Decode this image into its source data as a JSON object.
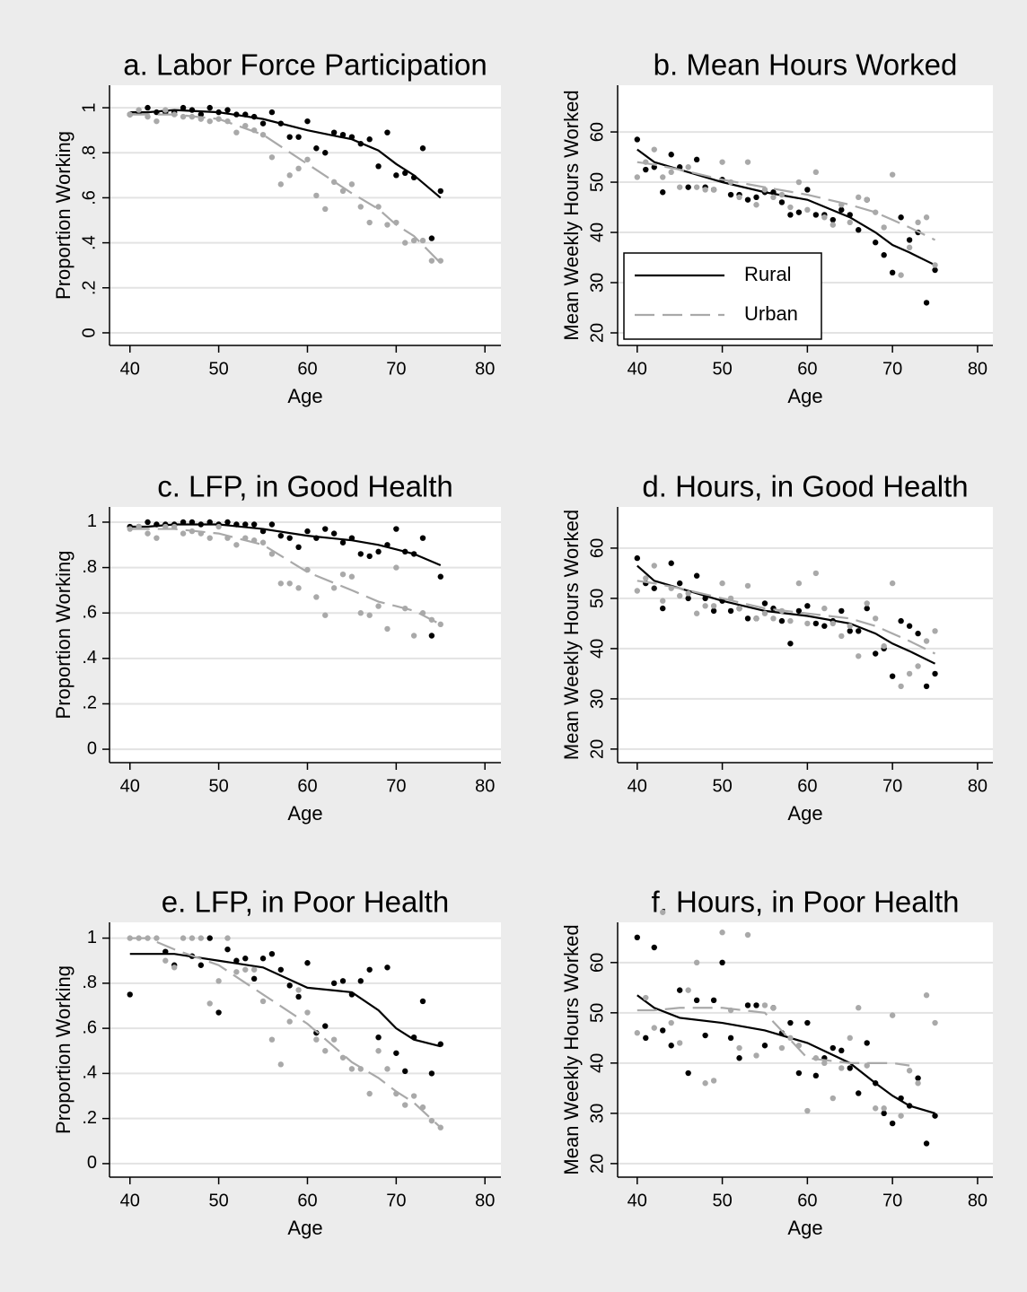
{
  "chart_data": [
    {
      "type": "scatter",
      "title": "a. Labor Force Participation",
      "x_label": "Age",
      "y_label": "Proportion Working",
      "xlim": [
        37.7,
        81.8
      ],
      "xticks": [
        40,
        50,
        60,
        70,
        80
      ],
      "ylim": [
        -0.056,
        1.1
      ],
      "yticks": [
        0,
        {
          "value": 0.2,
          "label": ".2"
        },
        {
          "value": 0.4,
          "label": ".4"
        },
        {
          "value": 0.6,
          "label": ".6"
        },
        {
          "value": 0.8,
          "label": ".8"
        },
        1
      ],
      "ytick_angle": -90,
      "grid": true,
      "x": [
        40,
        41,
        42,
        43,
        44,
        45,
        46,
        47,
        48,
        49,
        50,
        51,
        52,
        53,
        54,
        55,
        56,
        57,
        58,
        59,
        60,
        61,
        62,
        63,
        64,
        65,
        66,
        67,
        68,
        69,
        70,
        71,
        72,
        73,
        74,
        75
      ],
      "fit_x": [
        40,
        42,
        45,
        50,
        55,
        60,
        65,
        68,
        70,
        72,
        75
      ],
      "series": [
        {
          "color": "#000000",
          "linestyle": "solid",
          "values": [
            0.97,
            0.98,
            1.0,
            0.98,
            0.98,
            0.98,
            1.0,
            0.99,
            0.97,
            1.0,
            0.98,
            0.99,
            0.97,
            0.97,
            0.96,
            0.93,
            0.98,
            0.93,
            0.87,
            0.87,
            0.94,
            0.82,
            0.8,
            0.89,
            0.88,
            0.87,
            0.84,
            0.86,
            0.74,
            0.89,
            0.7,
            0.71,
            0.69,
            0.82,
            0.42,
            0.63
          ],
          "fit": [
            0.98,
            0.98,
            0.99,
            0.98,
            0.95,
            0.9,
            0.86,
            0.81,
            0.75,
            0.7,
            0.6
          ]
        },
        {
          "color": "#a9a9a9",
          "linestyle": "dashed",
          "values": [
            0.97,
            0.99,
            0.96,
            0.94,
            0.99,
            0.97,
            0.96,
            0.96,
            0.95,
            0.94,
            0.95,
            0.94,
            0.89,
            0.92,
            0.9,
            0.88,
            0.78,
            0.66,
            0.7,
            0.73,
            0.77,
            0.61,
            0.55,
            0.67,
            0.63,
            0.66,
            0.56,
            0.49,
            0.56,
            0.48,
            0.49,
            0.4,
            0.41,
            0.41,
            0.32,
            0.32
          ],
          "fit": [
            0.97,
            0.97,
            0.97,
            0.95,
            0.88,
            0.75,
            0.62,
            0.55,
            0.48,
            0.43,
            0.31
          ]
        }
      ]
    },
    {
      "type": "scatter",
      "title": "b. Mean Hours Worked",
      "x_label": "Age",
      "y_label": "Mean Weekly Hours Worked",
      "xlim": [
        37.7,
        81.8
      ],
      "xticks": [
        40,
        50,
        60,
        70,
        80
      ],
      "ylim": [
        17.5,
        69.3
      ],
      "yticks": [
        20,
        30,
        40,
        50,
        60
      ],
      "ytick_angle": -90,
      "grid": true,
      "legend": "lower left",
      "x": [
        40,
        41,
        42,
        43,
        44,
        45,
        46,
        47,
        48,
        49,
        50,
        51,
        52,
        53,
        54,
        55,
        56,
        57,
        58,
        59,
        60,
        61,
        62,
        63,
        64,
        65,
        66,
        67,
        68,
        69,
        70,
        71,
        72,
        73,
        74,
        75
      ],
      "fit_x": [
        40,
        42,
        45,
        50,
        55,
        60,
        65,
        68,
        70,
        72,
        75
      ],
      "series": [
        {
          "name": "Rural",
          "color": "#000000",
          "linestyle": "solid",
          "values": [
            58.5,
            52.5,
            53,
            48,
            55.5,
            53,
            49,
            54.5,
            49,
            48.5,
            50.5,
            47.5,
            47.5,
            46.5,
            47,
            48,
            48,
            46,
            43.5,
            44,
            48.5,
            43.5,
            43.5,
            42.5,
            44.5,
            43.5,
            40.5,
            46.5,
            38,
            35.5,
            32,
            43,
            38.5,
            40,
            26,
            32.5
          ],
          "fit": [
            56.5,
            54,
            52.5,
            50,
            48,
            46.5,
            43,
            40,
            37.5,
            36,
            33.5
          ]
        },
        {
          "name": "Urban",
          "color": "#a9a9a9",
          "linestyle": "dashed",
          "values": [
            51,
            54,
            56.5,
            51,
            52,
            49,
            53,
            49,
            48.5,
            48.5,
            54,
            50,
            47,
            54,
            45.5,
            48.5,
            47,
            47.5,
            45,
            50,
            44.5,
            52,
            43,
            41.5,
            45.5,
            42,
            47,
            46.5,
            44,
            41,
            51.5,
            31.5,
            37,
            42,
            43,
            33.5
          ],
          "fit": [
            54,
            53.5,
            52.5,
            50.5,
            49,
            47.5,
            45.5,
            44,
            42.5,
            41,
            38.5
          ]
        }
      ]
    },
    {
      "type": "scatter",
      "title": "c. LFP, in Good Health",
      "x_label": "Age",
      "y_label": "Proportion Working",
      "xlim": [
        37.7,
        81.8
      ],
      "xticks": [
        40,
        50,
        60,
        70,
        80
      ],
      "ylim": [
        -0.059,
        1.067
      ],
      "yticks": [
        0,
        {
          "value": 0.2,
          "label": ".2"
        },
        {
          "value": 0.4,
          "label": ".4"
        },
        {
          "value": 0.6,
          "label": ".6"
        },
        {
          "value": 0.8,
          "label": ".8"
        },
        1
      ],
      "ytick_angle": 0,
      "grid": true,
      "x": [
        40,
        41,
        42,
        43,
        44,
        45,
        46,
        47,
        48,
        49,
        50,
        51,
        52,
        53,
        54,
        55,
        56,
        57,
        58,
        59,
        60,
        61,
        62,
        63,
        64,
        65,
        66,
        67,
        68,
        69,
        70,
        71,
        72,
        73,
        74,
        75
      ],
      "fit_x": [
        40,
        42,
        45,
        50,
        55,
        60,
        65,
        68,
        70,
        72,
        75
      ],
      "series": [
        {
          "color": "#000000",
          "linestyle": "solid",
          "values": [
            0.98,
            0.98,
            1.0,
            0.99,
            0.99,
            0.99,
            1.0,
            1.0,
            0.99,
            1.0,
            0.99,
            1.0,
            0.99,
            0.99,
            0.99,
            0.96,
            0.99,
            0.94,
            0.93,
            0.89,
            0.96,
            0.93,
            0.97,
            0.95,
            0.91,
            0.93,
            0.86,
            0.85,
            0.87,
            0.9,
            0.97,
            0.87,
            0.86,
            0.93,
            0.5,
            0.76
          ],
          "fit": [
            0.98,
            0.98,
            0.99,
            0.99,
            0.97,
            0.94,
            0.92,
            0.9,
            0.88,
            0.86,
            0.81
          ]
        },
        {
          "color": "#a9a9a9",
          "linestyle": "dashed",
          "values": [
            0.97,
            0.98,
            0.95,
            0.93,
            0.98,
            0.98,
            0.95,
            0.96,
            0.95,
            0.93,
            0.98,
            0.93,
            0.9,
            0.93,
            0.92,
            0.91,
            0.86,
            0.73,
            0.73,
            0.71,
            0.79,
            0.67,
            0.59,
            0.71,
            0.77,
            0.76,
            0.6,
            0.59,
            0.63,
            0.53,
            0.8,
            0.62,
            0.5,
            0.6,
            0.57,
            0.55
          ],
          "fit": [
            0.97,
            0.97,
            0.97,
            0.95,
            0.9,
            0.78,
            0.7,
            0.65,
            0.63,
            0.61,
            0.55
          ]
        }
      ]
    },
    {
      "type": "scatter",
      "title": "d. Hours, in Good Health",
      "x_label": "Age",
      "y_label": "Mean Weekly Hours Worked",
      "xlim": [
        37.7,
        81.8
      ],
      "xticks": [
        40,
        50,
        60,
        70,
        80
      ],
      "ylim": [
        17.3,
        68.2
      ],
      "yticks": [
        20,
        30,
        40,
        50,
        60
      ],
      "ytick_angle": -90,
      "grid": true,
      "x": [
        40,
        41,
        42,
        43,
        44,
        45,
        46,
        47,
        48,
        49,
        50,
        51,
        52,
        53,
        54,
        55,
        56,
        57,
        58,
        59,
        60,
        61,
        62,
        63,
        64,
        65,
        66,
        67,
        68,
        69,
        70,
        71,
        72,
        73,
        74,
        75
      ],
      "fit_x": [
        40,
        42,
        45,
        50,
        55,
        60,
        65,
        68,
        70,
        72,
        75
      ],
      "series": [
        {
          "color": "#000000",
          "linestyle": "solid",
          "values": [
            58,
            53,
            52,
            48,
            57,
            53,
            50,
            54.5,
            50,
            47.5,
            49.5,
            47.5,
            48,
            46,
            46,
            49,
            48,
            45.5,
            41,
            47.5,
            48.5,
            45,
            44.5,
            45.5,
            47.5,
            43.5,
            43.5,
            48,
            39,
            40,
            34.5,
            45.5,
            44.5,
            43,
            32.5,
            35
          ],
          "fit": [
            56.5,
            53.5,
            52,
            49.5,
            47.5,
            46.5,
            45,
            43,
            41,
            39.5,
            37
          ]
        },
        {
          "color": "#a9a9a9",
          "linestyle": "dashed",
          "values": [
            51.5,
            54,
            56.5,
            49.5,
            52,
            50.5,
            51,
            47,
            48.5,
            48.5,
            53,
            50,
            48,
            52.5,
            46,
            47,
            46,
            47.5,
            45.5,
            53,
            45,
            55,
            48,
            45,
            42.5,
            44.5,
            38.5,
            49,
            46,
            40.5,
            53,
            32.5,
            35,
            36.5,
            41.5,
            43.5
          ],
          "fit": [
            53.5,
            53,
            52,
            50,
            48,
            47,
            46,
            44.5,
            43,
            41.5,
            39
          ]
        }
      ]
    },
    {
      "type": "scatter",
      "title": "e. LFP, in Poor Health",
      "x_label": "Age",
      "y_label": "Proportion Working",
      "xlim": [
        37.7,
        81.8
      ],
      "xticks": [
        40,
        50,
        60,
        70,
        80
      ],
      "ylim": [
        -0.06,
        1.07
      ],
      "yticks": [
        0,
        {
          "value": 0.2,
          "label": ".2"
        },
        {
          "value": 0.4,
          "label": ".4"
        },
        {
          "value": 0.6,
          "label": ".6"
        },
        {
          "value": 0.8,
          "label": ".8"
        },
        1
      ],
      "ytick_angle": 0,
      "grid": true,
      "x": [
        40,
        41,
        42,
        43,
        44,
        45,
        46,
        47,
        48,
        49,
        50,
        51,
        52,
        53,
        54,
        55,
        56,
        57,
        58,
        59,
        60,
        61,
        62,
        63,
        64,
        65,
        66,
        67,
        68,
        69,
        70,
        71,
        72,
        73,
        74,
        75
      ],
      "fit_x": [
        40,
        42,
        45,
        50,
        55,
        60,
        65,
        68,
        70,
        72,
        75
      ],
      "series": [
        {
          "color": "#000000",
          "linestyle": "solid",
          "values": [
            0.75,
            null,
            null,
            null,
            0.94,
            0.88,
            null,
            0.92,
            0.88,
            1.0,
            0.67,
            0.95,
            0.9,
            0.91,
            0.82,
            0.91,
            0.93,
            0.86,
            0.79,
            0.74,
            0.89,
            0.58,
            0.61,
            0.8,
            0.81,
            0.75,
            0.81,
            0.86,
            0.56,
            0.87,
            0.49,
            0.41,
            0.56,
            0.72,
            0.4,
            0.53
          ],
          "fit": [
            0.93,
            0.93,
            0.93,
            0.9,
            0.87,
            0.78,
            0.76,
            0.68,
            0.6,
            0.55,
            0.52
          ]
        },
        {
          "color": "#a9a9a9",
          "linestyle": "dashed",
          "values": [
            1.0,
            1.0,
            1.0,
            1.0,
            0.9,
            0.87,
            1.0,
            1.0,
            1.0,
            0.71,
            0.81,
            1.0,
            0.85,
            0.86,
            0.86,
            0.72,
            0.55,
            0.44,
            0.63,
            0.77,
            0.67,
            0.55,
            0.5,
            0.55,
            0.47,
            0.42,
            0.42,
            0.31,
            0.5,
            0.42,
            0.31,
            0.26,
            0.3,
            0.25,
            0.19,
            0.16
          ],
          "fit": [
            1.0,
            1.0,
            0.95,
            0.88,
            0.75,
            0.62,
            0.45,
            0.38,
            0.32,
            0.27,
            0.16
          ]
        }
      ]
    },
    {
      "type": "scatter",
      "title": "f. Hours, in Poor Health",
      "x_label": "Age",
      "y_label": "Mean Weekly Hours Worked",
      "xlim": [
        37.7,
        81.8
      ],
      "xticks": [
        40,
        50,
        60,
        70,
        80
      ],
      "ylim": [
        17.3,
        68
      ],
      "yticks": [
        20,
        30,
        40,
        50,
        60
      ],
      "ytick_angle": -90,
      "grid": true,
      "x": [
        40,
        41,
        42,
        43,
        44,
        45,
        46,
        47,
        48,
        49,
        50,
        51,
        52,
        53,
        54,
        55,
        56,
        57,
        58,
        59,
        60,
        61,
        62,
        63,
        64,
        65,
        66,
        67,
        68,
        69,
        70,
        71,
        72,
        73,
        74,
        75
      ],
      "fit_x": [
        40,
        42,
        45,
        50,
        55,
        60,
        65,
        68,
        70,
        72,
        75
      ],
      "series": [
        {
          "color": "#000000",
          "linestyle": "solid",
          "values": [
            65,
            45,
            63,
            46.5,
            43.5,
            54.5,
            38,
            52.5,
            45.5,
            52.5,
            60,
            45,
            41,
            51.5,
            51.5,
            43.5,
            51,
            46,
            48,
            38,
            48,
            37.5,
            41,
            43,
            42.5,
            39,
            34,
            44,
            36,
            30,
            28,
            33,
            31.5,
            37,
            24,
            29.5
          ],
          "fit": [
            53.5,
            51,
            49,
            48,
            46.5,
            44,
            40,
            36,
            33.5,
            31.5,
            30
          ]
        },
        {
          "color": "#a9a9a9",
          "linestyle": "dashed",
          "values": [
            46,
            53,
            47,
            70,
            48,
            44,
            54.5,
            60,
            36,
            36.5,
            66,
            50.5,
            43,
            65.5,
            41.5,
            51.5,
            51,
            43,
            45,
            43.5,
            30.5,
            41,
            40,
            33,
            39,
            45,
            51,
            39.5,
            31,
            31,
            49.5,
            29.5,
            38.5,
            36,
            53.5,
            48
          ],
          "fit": [
            50.5,
            50.5,
            51,
            51,
            50,
            41,
            40,
            40,
            40,
            39.5,
            null
          ]
        }
      ]
    }
  ]
}
